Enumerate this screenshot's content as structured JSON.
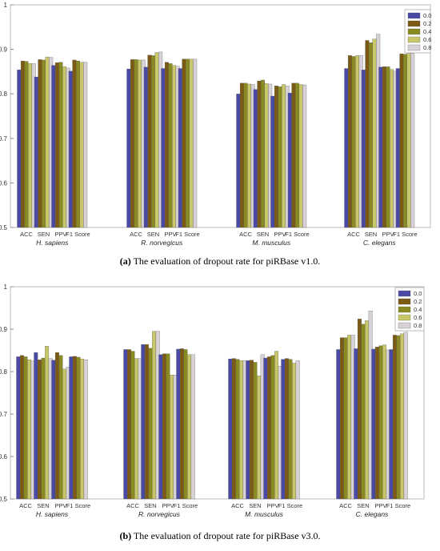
{
  "captions": [
    {
      "tag": "(a)",
      "text": "The evaluation of dropout rate for piRBase v1.0."
    },
    {
      "tag": "(b)",
      "text": "The evaluation of dropout rate for piRBase v3.0."
    }
  ],
  "colors": {
    "0.0": "#4a4aa6",
    "0.2": "#7a5a14",
    "0.4": "#8a8a22",
    "0.6": "#c8c86a",
    "0.8": "#d8d2d8"
  },
  "chart_data": [
    {
      "type": "bar",
      "title": "",
      "ylim": [
        0.5,
        1
      ],
      "yticks": [
        "0.5",
        "0.6",
        "0.7",
        "0.8",
        "0.9",
        "1"
      ],
      "legend_position": "top-right",
      "legend": [
        "0.0",
        "0.2",
        "0.4",
        "0.6",
        "0.8"
      ],
      "metrics": [
        "ACC",
        "SEN",
        "PPV",
        "F1 Score"
      ],
      "species": [
        "H. sapiens",
        "R. norvegicus",
        "M. musculus",
        "C. elegans"
      ],
      "values": [
        [
          [
            0.854,
            0.874,
            0.873,
            0.868,
            0.868
          ],
          [
            0.838,
            0.877,
            0.876,
            0.883,
            0.882
          ],
          [
            0.864,
            0.87,
            0.871,
            0.861,
            0.858
          ],
          [
            0.851,
            0.876,
            0.874,
            0.871,
            0.871
          ]
        ],
        [
          [
            0.856,
            0.877,
            0.877,
            0.876,
            0.876
          ],
          [
            0.86,
            0.887,
            0.886,
            0.893,
            0.894
          ],
          [
            0.857,
            0.871,
            0.868,
            0.864,
            0.862
          ],
          [
            0.857,
            0.878,
            0.878,
            0.878,
            0.878
          ]
        ],
        [
          [
            0.8,
            0.824,
            0.824,
            0.822,
            0.821
          ],
          [
            0.81,
            0.829,
            0.831,
            0.823,
            0.822
          ],
          [
            0.795,
            0.818,
            0.816,
            0.821,
            0.818
          ],
          [
            0.802,
            0.824,
            0.824,
            0.821,
            0.82
          ]
        ],
        [
          [
            0.857,
            0.886,
            0.884,
            0.886,
            0.886
          ],
          [
            0.854,
            0.92,
            0.915,
            0.923,
            0.934
          ],
          [
            0.86,
            0.861,
            0.861,
            0.855,
            0.851
          ],
          [
            0.857,
            0.89,
            0.889,
            0.891,
            0.891
          ]
        ]
      ]
    },
    {
      "type": "bar",
      "title": "",
      "ylim": [
        0.5,
        1
      ],
      "yticks": [
        "0.5",
        "0.6",
        "0.7",
        "0.8",
        "0.9",
        "1"
      ],
      "legend_position": "top-right",
      "legend": [
        "0.0",
        "0.2",
        "0.4",
        "0.6",
        "0.8"
      ],
      "metrics": [
        "ACC",
        "SEN",
        "PPV",
        "F1 Score"
      ],
      "species": [
        "H. sapiens",
        "R. norvegicus",
        "M. musculus",
        "C. elegans"
      ],
      "values": [
        [
          [
            0.835,
            0.838,
            0.835,
            0.828,
            0.825
          ],
          [
            0.845,
            0.828,
            0.832,
            0.86,
            0.831
          ],
          [
            0.827,
            0.845,
            0.838,
            0.806,
            0.811
          ],
          [
            0.835,
            0.836,
            0.834,
            0.83,
            0.828
          ]
        ],
        [
          [
            0.852,
            0.852,
            0.848,
            0.831,
            0.831
          ],
          [
            0.864,
            0.864,
            0.855,
            0.895,
            0.895
          ],
          [
            0.84,
            0.842,
            0.842,
            0.792,
            0.792
          ],
          [
            0.853,
            0.854,
            0.852,
            0.84,
            0.84
          ]
        ],
        [
          [
            0.83,
            0.831,
            0.829,
            0.826,
            0.826
          ],
          [
            0.826,
            0.827,
            0.822,
            0.79,
            0.84
          ],
          [
            0.832,
            0.835,
            0.838,
            0.848,
            0.813
          ],
          [
            0.829,
            0.831,
            0.829,
            0.82,
            0.826
          ]
        ],
        [
          [
            0.852,
            0.88,
            0.88,
            0.886,
            0.886
          ],
          [
            0.854,
            0.924,
            0.912,
            0.92,
            0.943
          ],
          [
            0.853,
            0.858,
            0.861,
            0.863,
            0.851
          ],
          [
            0.852,
            0.886,
            0.885,
            0.889,
            0.893
          ]
        ]
      ]
    }
  ]
}
